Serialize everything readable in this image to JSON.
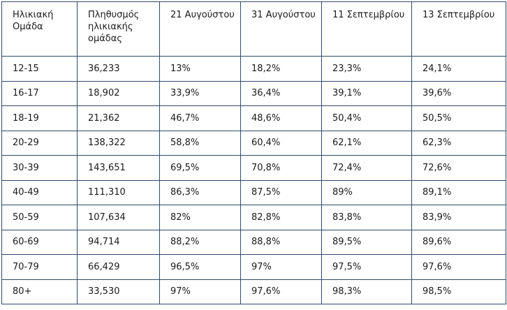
{
  "table": {
    "headers": [
      "Ηλικιακή Ομάδα",
      "Πληθυσμός ηλικιακής ομάδας",
      "21 Αυγούστου",
      "31 Αυγούστου",
      "11 Σεπτεμβρίου",
      "13 Σεπτεμβρίου"
    ],
    "rows": [
      [
        "12-15",
        "36,233",
        "13%",
        "18,2%",
        "23,3%",
        "24,1%"
      ],
      [
        "16-17",
        "18,902",
        "33,9%",
        "36,4%",
        "39,1%",
        "39,6%"
      ],
      [
        "18-19",
        "21,362",
        "46,7%",
        "48,6%",
        "50,4%",
        "50,5%"
      ],
      [
        "20-29",
        "138,322",
        "58,8%",
        "60,4%",
        "62,1%",
        "62,3%"
      ],
      [
        "30-39",
        "143,651",
        "69,5%",
        "70,8%",
        "72,4%",
        "72,6%"
      ],
      [
        "40-49",
        "111,310",
        "86,3%",
        "87,5%",
        "89%",
        "89,1%"
      ],
      [
        "50-59",
        "107,634",
        "82%",
        "82,8%",
        "83,8%",
        "83,9%"
      ],
      [
        "60-69",
        "94,714",
        "88,2%",
        "88,8%",
        "89,5%",
        "89,6%"
      ],
      [
        "70-79",
        "66,429",
        "96,5%",
        "97%",
        "97,5%",
        "97,6%"
      ],
      [
        "80+",
        "33,530",
        "97%",
        "97,6%",
        "98,3%",
        "98,5%"
      ]
    ]
  }
}
